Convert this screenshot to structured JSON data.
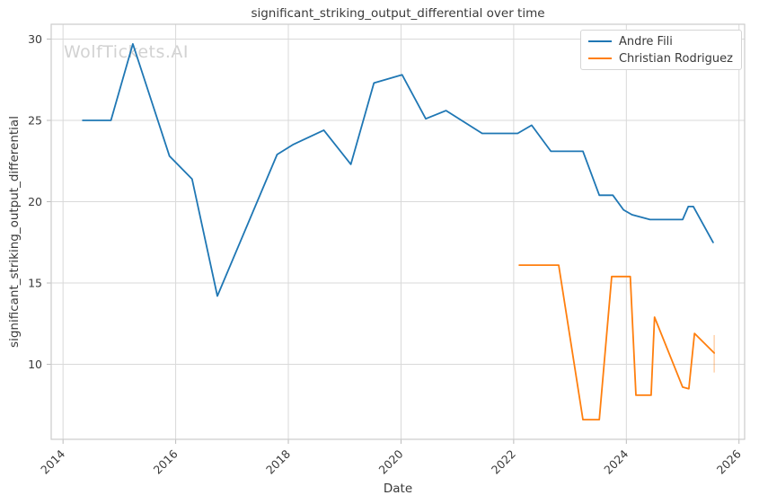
{
  "watermark": "WolfTickets.AI",
  "chart_data": {
    "type": "line",
    "title": "significant_striking_output_differential over time",
    "xlabel": "Date",
    "ylabel": "significant_striking_output_differential",
    "x_ticks": [
      2014,
      2016,
      2018,
      2020,
      2022,
      2024,
      2026
    ],
    "y_ticks": [
      10,
      15,
      20,
      25,
      30
    ],
    "xlim": [
      2013.79,
      2026.1
    ],
    "ylim": [
      5.39,
      30.91
    ],
    "grid": true,
    "grid_color": "#d9d9d9",
    "spine_color": "#cccccc",
    "tick_color": "#bbbbbb",
    "legend_position": "upper right",
    "series": [
      {
        "name": "Andre Fili",
        "color": "#1f77b4",
        "x": [
          2014.35,
          2014.85,
          2015.24,
          2015.89,
          2016.29,
          2016.74,
          2017.8,
          2018.08,
          2018.63,
          2019.11,
          2019.52,
          2020.02,
          2020.44,
          2020.8,
          2021.44,
          2022.07,
          2022.32,
          2022.66,
          2023.23,
          2023.52,
          2023.76,
          2023.95,
          2024.1,
          2024.42,
          2025.0,
          2025.1,
          2025.19,
          2025.54
        ],
        "y": [
          25.0,
          25.0,
          29.7,
          22.8,
          21.4,
          14.2,
          22.9,
          23.5,
          24.4,
          22.3,
          27.3,
          27.8,
          25.1,
          25.6,
          24.2,
          24.2,
          24.7,
          23.1,
          23.1,
          20.4,
          20.4,
          19.5,
          19.2,
          18.9,
          18.9,
          19.7,
          19.7,
          17.5
        ]
      },
      {
        "name": "Christian Rodriguez",
        "color": "#ff7f0e",
        "x": [
          2022.1,
          2022.8,
          2023.23,
          2023.52,
          2023.74,
          2024.07,
          2024.17,
          2024.44,
          2024.5,
          2025.0,
          2025.11,
          2025.21,
          2025.56
        ],
        "y": [
          16.1,
          16.1,
          6.6,
          6.6,
          15.4,
          15.4,
          8.1,
          8.1,
          12.9,
          8.6,
          8.5,
          11.9,
          10.7
        ],
        "final_point_error_bar": {
          "x": 2025.56,
          "y_low": 9.5,
          "y_high": 11.8
        }
      }
    ]
  }
}
